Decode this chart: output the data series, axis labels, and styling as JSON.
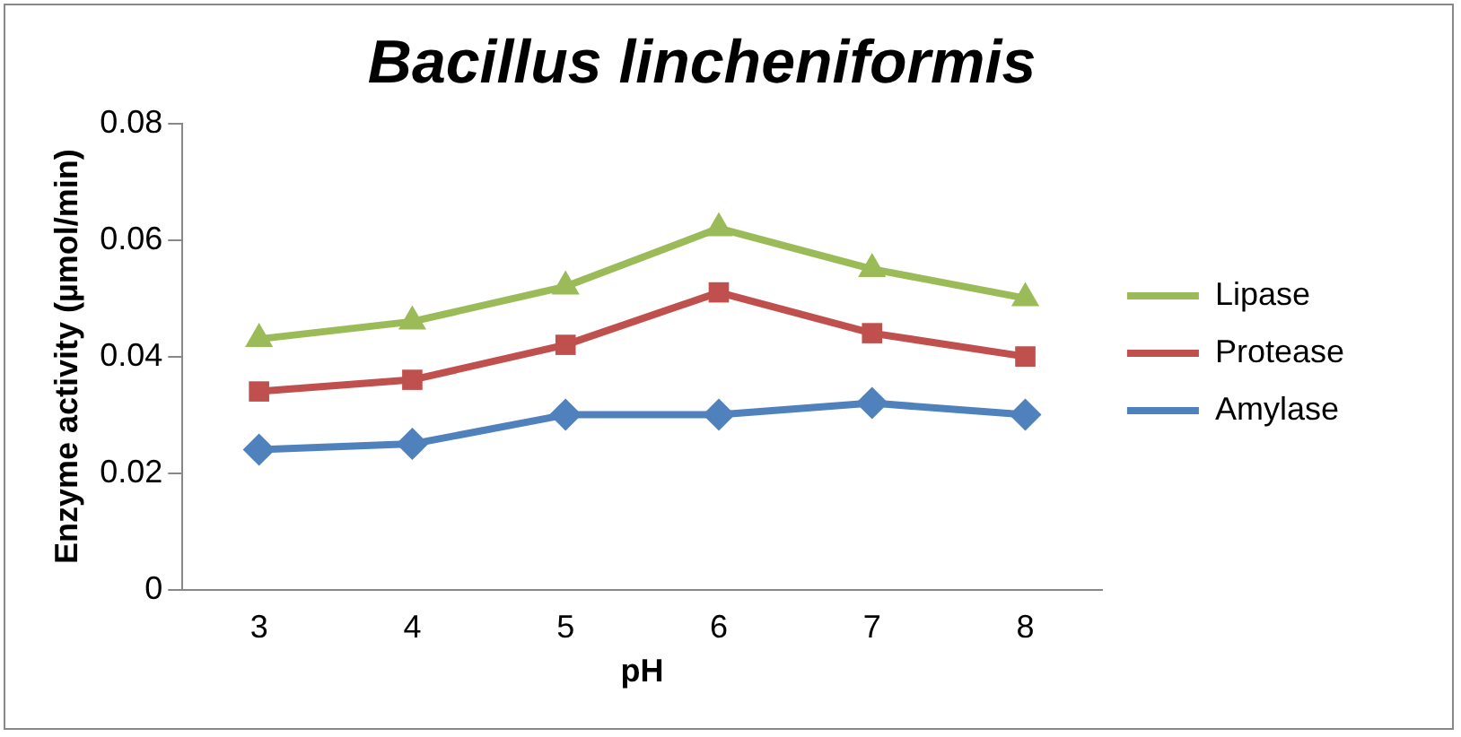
{
  "chart_data": {
    "type": "line",
    "title": "Bacillus lincheniformis",
    "xlabel": "pH",
    "ylabel": "Enzyme activity (µmol/min)",
    "categories": [
      "3",
      "4",
      "5",
      "6",
      "7",
      "8"
    ],
    "series": [
      {
        "name": "Lipase",
        "color": "#9bbb59",
        "marker": "triangle",
        "values": [
          0.043,
          0.046,
          0.052,
          0.062,
          0.055,
          0.05
        ]
      },
      {
        "name": "Protease",
        "color": "#c0504d",
        "marker": "square",
        "values": [
          0.034,
          0.036,
          0.042,
          0.051,
          0.044,
          0.04
        ]
      },
      {
        "name": "Amylase",
        "color": "#4f81bd",
        "marker": "diamond",
        "values": [
          0.024,
          0.025,
          0.03,
          0.03,
          0.032,
          0.03
        ]
      }
    ],
    "ylim": [
      0,
      0.08
    ],
    "yticks": [
      0,
      0.02,
      0.04,
      0.06,
      0.08
    ],
    "grid": false,
    "legend": "right"
  }
}
